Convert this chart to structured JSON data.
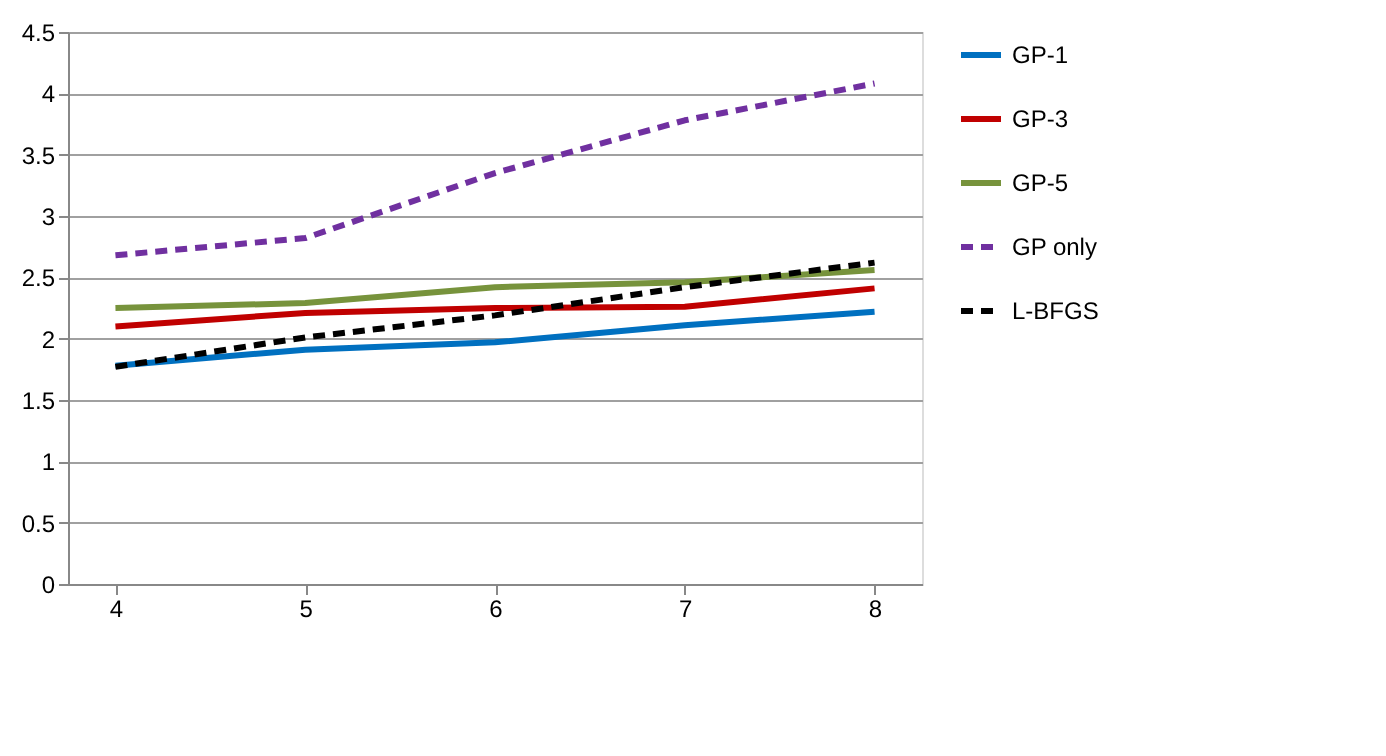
{
  "chart_data": {
    "type": "line",
    "x": [
      4,
      5,
      6,
      7,
      8
    ],
    "xlim": [
      3.75,
      8.25
    ],
    "xticks": [
      4,
      5,
      6,
      7,
      8
    ],
    "ylim": [
      0,
      4.5
    ],
    "yticks": [
      0,
      0.5,
      1,
      1.5,
      2,
      2.5,
      3,
      3.5,
      4,
      4.5
    ],
    "grid": "y",
    "legend": "right",
    "marker": "none",
    "series": [
      {
        "name": "GP-1",
        "color": "#0070c0",
        "line_style": "solid",
        "values": [
          1.78,
          1.91,
          1.97,
          2.11,
          2.22
        ]
      },
      {
        "name": "GP-3",
        "color": "#c00000",
        "line_style": "solid",
        "values": [
          2.1,
          2.21,
          2.25,
          2.26,
          2.41
        ]
      },
      {
        "name": "GP-5",
        "color": "#77933c",
        "line_style": "solid",
        "values": [
          2.25,
          2.29,
          2.42,
          2.46,
          2.56
        ]
      },
      {
        "name": "GP only",
        "color": "#7030a0",
        "line_style": "dashed",
        "values": [
          2.68,
          2.82,
          3.35,
          3.78,
          4.08
        ]
      },
      {
        "name": "L-BFGS",
        "color": "#000000",
        "line_style": "dashed",
        "values": [
          1.77,
          2.01,
          2.19,
          2.42,
          2.62
        ]
      }
    ]
  }
}
